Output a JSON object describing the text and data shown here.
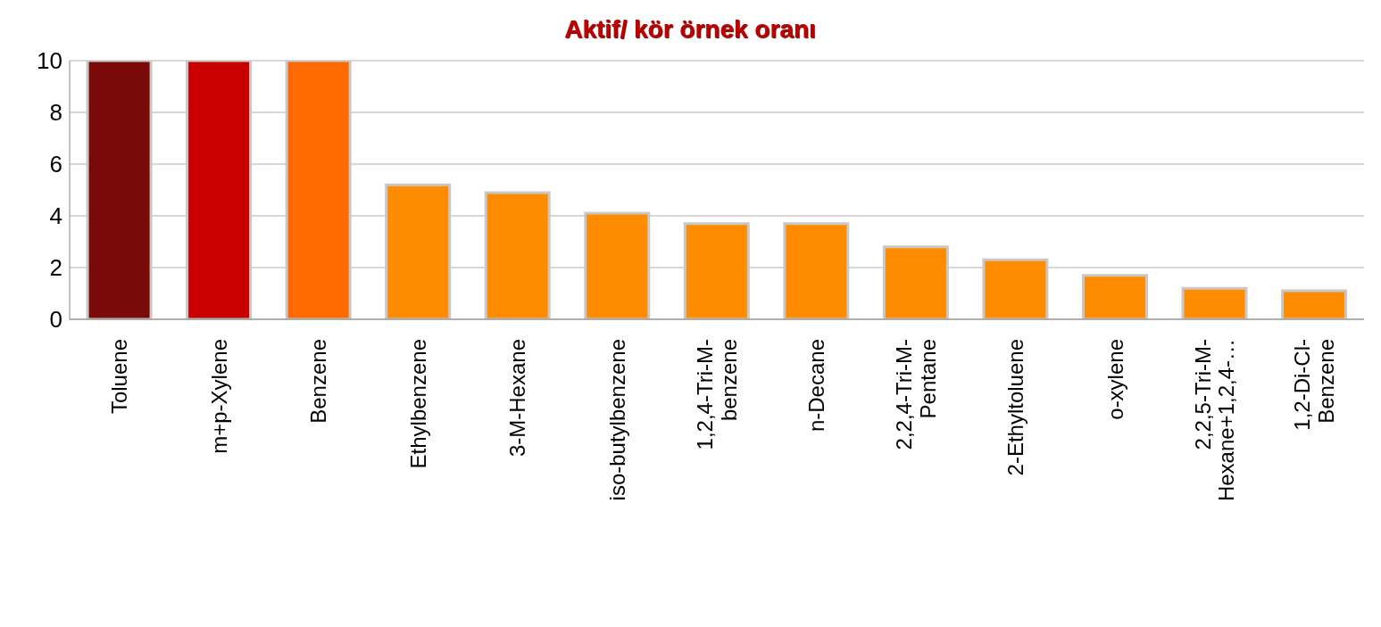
{
  "chart_data": {
    "type": "bar",
    "title": "Aktif/ kör örnek oranı",
    "categories": [
      "Toluene",
      "m+p-Xylene",
      "Benzene",
      "Ethylbenzene",
      "3-M-Hexane",
      "iso-butylbenzene",
      "1,2,4-Tri-M-benzene",
      "n-Decane",
      "2,2,4-Tri-M-Pentane",
      "2-Ethyltoluene",
      "o-xylene",
      "2,2,5-Tri-M-Hexane+1,2,4-…",
      "1,2-Di-Cl-Benzene"
    ],
    "values": [
      10,
      10,
      10,
      5.2,
      4.9,
      4.1,
      3.7,
      3.7,
      2.8,
      2.3,
      1.7,
      1.2,
      1.1
    ],
    "colors": [
      "#7a0a0a",
      "#c80000",
      "#ff6a00",
      "#ff8c00",
      "#ff8c00",
      "#ff8c00",
      "#ff8c00",
      "#ff8c00",
      "#ff8c00",
      "#ff8c00",
      "#ff8c00",
      "#ff8c00",
      "#ff8c00"
    ],
    "ylim": [
      0,
      10
    ],
    "yticks": [
      0,
      2,
      4,
      6,
      8,
      10
    ],
    "grid": "y"
  }
}
